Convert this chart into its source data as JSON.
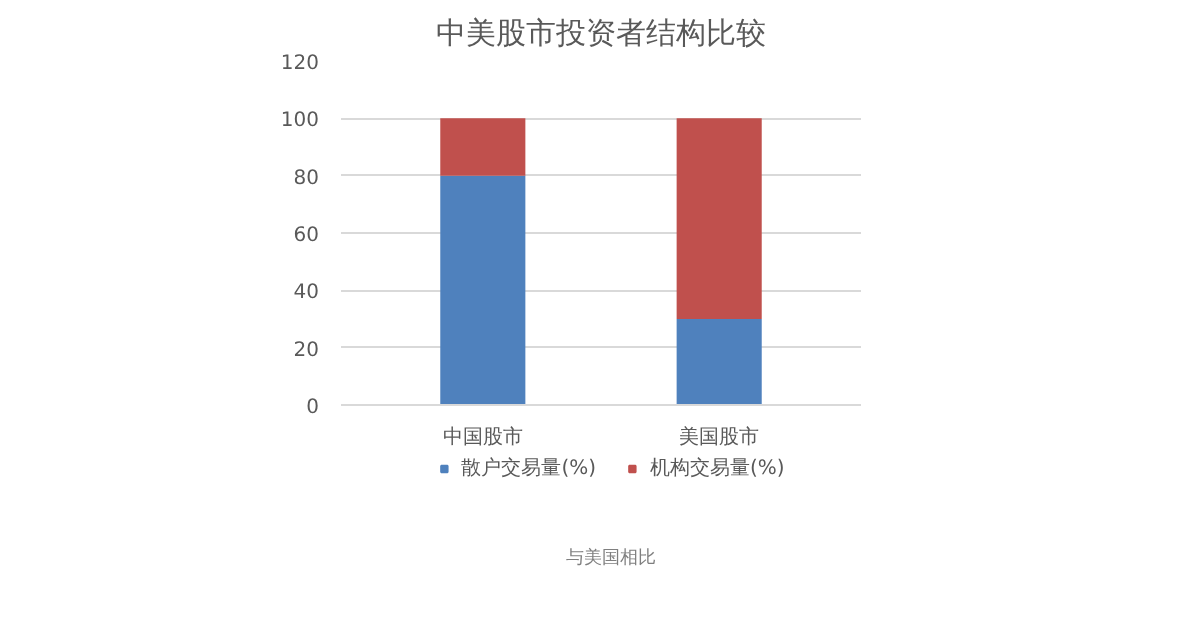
{
  "chart_data": {
    "type": "bar",
    "title": "中美股市投资者结构比较",
    "categories": [
      "中国股市",
      "美国股市"
    ],
    "stacked": true,
    "series": [
      {
        "name": "散户交易量(%)",
        "color": "#4f81bd",
        "values": [
          80,
          30
        ]
      },
      {
        "name": "机构交易量(%)",
        "color": "#c0504d",
        "values": [
          20,
          70
        ]
      }
    ],
    "ylim": [
      0,
      120
    ],
    "yticks": [
      0,
      20,
      40,
      60,
      80,
      100,
      120
    ],
    "grid": "y",
    "legend": "bottom",
    "annotations": [
      "与美国相比"
    ]
  }
}
